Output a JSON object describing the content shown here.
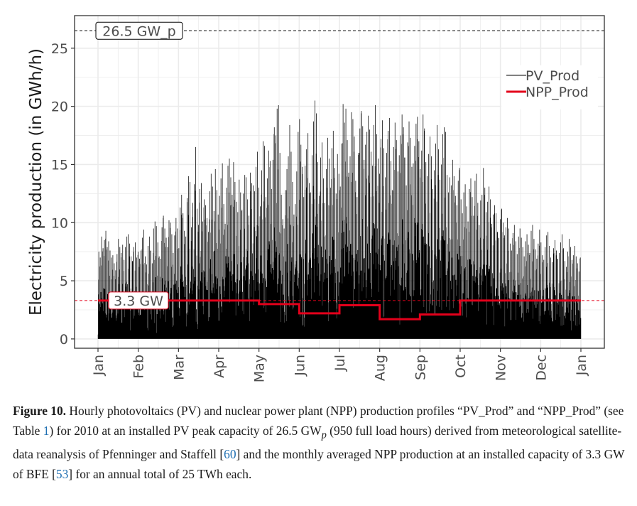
{
  "chart_data": {
    "type": "line",
    "ylabel": "Electricity production (in GWh/h)",
    "xlabel": "",
    "ylim": [
      -0.8,
      27.8
    ],
    "yticks": [
      0,
      5,
      10,
      15,
      20,
      25
    ],
    "x_categories": [
      "Jan",
      "Feb",
      "Mar",
      "Apr",
      "May",
      "Jun",
      "Jul",
      "Aug",
      "Sep",
      "Oct",
      "Nov",
      "Dec",
      "Jan"
    ],
    "grid": true,
    "legend_position": "top-right",
    "series": [
      {
        "name": "PV_Prod",
        "style": "line",
        "color": "#000000",
        "monthly_envelope_peak": [
          9.3,
          10.6,
          16.5,
          15.5,
          20.1,
          20.5,
          20.2,
          20.1,
          19.3,
          18.4,
          14.7,
          9.8
        ],
        "approx_daily_peak": [
          7.5,
          7.0,
          8.8,
          7.8,
          8.5,
          9.3,
          7.9,
          8.4,
          7.6,
          7.0,
          7.2,
          6.5,
          5.9,
          7.3,
          8.6,
          7.9,
          7.4,
          8.1,
          6.8,
          7.9,
          8.8,
          9.0,
          8.2,
          7.1,
          6.7,
          7.9,
          8.3,
          7.0,
          7.5,
          6.9,
          7.6,
          8.7,
          9.4,
          7.1,
          6.4,
          8.0,
          8.8,
          7.6,
          6.5,
          9.5,
          10.1,
          9.7,
          8.3,
          7.1,
          6.9,
          9.6,
          10.6,
          9.5,
          8.7,
          7.9,
          10.2,
          10.0,
          9.0,
          7.4,
          8.9,
          10.4,
          9.5,
          7.8,
          11.3,
          12.4,
          10.8,
          9.3,
          8.8,
          12.1,
          14.0,
          13.5,
          9.6,
          11.7,
          13.3,
          16.5,
          11.2,
          9.8,
          12.9,
          13.4,
          10.1,
          12.0,
          11.5,
          10.4,
          9.2,
          12.7,
          14.2,
          13.1,
          11.0,
          14.6,
          12.8,
          10.7,
          12.3,
          13.8,
          15.1,
          11.6,
          9.9,
          13.0,
          14.9,
          15.5,
          13.9,
          12.4,
          15.2,
          13.5,
          11.8,
          10.9,
          13.7,
          12.6,
          11.1,
          12.5,
          14.1,
          13.9,
          12.0,
          10.6,
          14.3,
          13.4,
          13.2,
          12.7,
          14.8,
          16.1,
          13.0,
          11.4,
          14.5,
          17.0,
          16.6,
          12.2,
          13.8,
          16.2,
          15.3,
          12.9,
          15.4,
          18.2,
          17.5,
          19.8,
          20.1,
          16.0,
          12.4,
          10.3,
          9.5,
          12.8,
          14.6,
          15.7,
          18.4,
          16.1,
          13.5,
          10.7,
          11.6,
          14.4,
          17.8,
          18.9,
          16.7,
          14.8,
          12.2,
          14.9,
          16.3,
          17.7,
          13.4,
          12.6,
          15.8,
          18.7,
          20.5,
          19.4,
          15.2,
          12.3,
          15.6,
          16.9,
          13.8,
          11.7,
          14.6,
          17.3,
          15.5,
          13.0,
          16.4,
          17.9,
          14.7,
          12.5,
          15.9,
          14.2,
          13.1,
          16.8,
          20.2,
          18.6,
          19.8,
          17.1,
          14.3,
          15.7,
          19.5,
          18.9,
          17.4,
          13.6,
          12.2,
          16.0,
          18.1,
          19.6,
          18.3,
          15.4,
          16.7,
          17.8,
          19.2,
          18.0,
          16.1,
          14.9,
          18.4,
          20.1,
          17.6,
          15.5,
          14.2,
          17.2,
          18.8,
          16.4,
          13.9,
          16.0,
          17.9,
          19.0,
          15.3,
          12.8,
          16.5,
          18.6,
          17.1,
          14.4,
          15.8,
          17.5,
          19.3,
          18.2,
          15.6,
          13.2,
          16.9,
          18.7,
          17.3,
          14.8,
          15.1,
          16.6,
          18.5,
          19.1,
          17.0,
          14.6,
          16.2,
          19.3,
          18.1,
          15.2,
          14.0,
          15.9,
          17.4,
          15.7,
          12.9,
          14.5,
          16.8,
          18.4,
          16.3,
          13.7,
          15.0,
          17.6,
          18.2,
          17.8,
          14.1,
          12.6,
          13.9,
          13.2,
          15.4,
          14.0,
          12.3,
          11.5,
          13.6,
          14.7,
          12.0,
          10.8,
          12.6,
          13.3,
          11.4,
          10.1,
          12.9,
          13.8,
          12.2,
          10.6,
          13.6,
          14.2,
          11.7,
          9.8,
          11.9,
          12.4,
          14.7,
          13.0,
          10.9,
          11.8,
          13.1,
          12.0,
          9.9,
          10.7,
          11.5,
          10.8,
          9.2,
          8.7,
          10.3,
          11.2,
          10.0,
          8.9,
          9.6,
          10.4,
          9.5,
          8.2,
          7.6,
          9.1,
          9.8,
          8.4,
          7.3,
          8.8,
          9.5,
          8.7,
          7.9,
          7.1,
          8.4,
          9.0,
          8.1,
          7.4,
          9.3,
          9.8,
          8.6,
          7.7,
          6.9,
          8.2,
          9.4,
          8.3,
          7.2,
          6.8,
          7.9,
          8.9,
          9.2,
          8.0,
          7.0,
          6.6,
          7.8,
          8.5,
          7.6,
          6.9,
          7.4,
          8.3,
          9.0,
          7.8,
          6.7,
          6.2,
          7.5,
          8.6,
          7.9,
          6.8,
          7.2,
          8.0,
          7.1,
          6.5,
          5.8,
          7.0
        ]
      },
      {
        "name": "NPP_Prod",
        "style": "step",
        "color": "#e3001b",
        "monthly_values": [
          3.3,
          3.3,
          3.3,
          3.3,
          3.0,
          2.2,
          2.9,
          1.7,
          2.1,
          3.3,
          3.3,
          3.3
        ]
      }
    ],
    "annotations": [
      {
        "text": "26.5 GW_p",
        "y": 26.5,
        "kind": "hline-dashed",
        "color": "#000000"
      },
      {
        "text": "3.3 GW",
        "y": 3.3,
        "kind": "hline-dashed",
        "color": "#e3001b"
      }
    ],
    "colors": {
      "pv": "#000000",
      "npp": "#e3001b",
      "grid": "#ebebeb",
      "panel_border": "#333333"
    }
  },
  "caption": {
    "label": "Figure 10.",
    "part1": " Hourly photovoltaics (PV) and nuclear power plant (NPP) production profiles “PV_Prod” and “NPP_Prod” (see Table ",
    "ref_table": "1",
    "part2": ") for 2010 at an installed PV peak capacity of 26.5 GW",
    "subscript": "p",
    "part3": " (950 full load hours) derived from meteorological satellite-data reanalysis of Pfenninger and Staffell [",
    "ref_pfenninger": "60",
    "part4": "] and the monthly averaged NPP production at an installed capacity of 3.3 GW of BFE [",
    "ref_bfe": "53",
    "part5": "] for an annual total of 25 TWh each."
  }
}
